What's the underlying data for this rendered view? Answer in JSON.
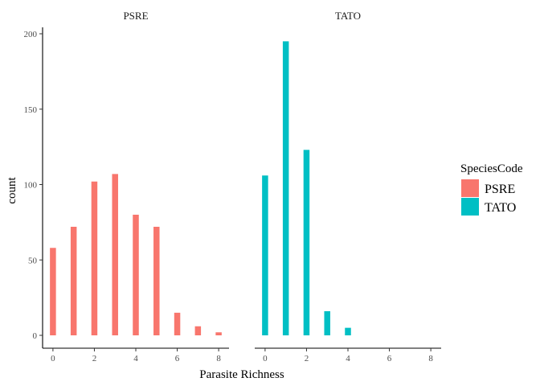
{
  "chart_data": {
    "type": "bar",
    "xlabel": "Parasite Richness",
    "ylabel": "count",
    "xlim": [
      -0.5,
      8.5
    ],
    "ylim": [
      0,
      205
    ],
    "x_ticks": [
      0,
      2,
      4,
      6,
      8
    ],
    "y_ticks": [
      0,
      50,
      100,
      150,
      200
    ],
    "grid": false,
    "legend": {
      "title": "SpeciesCode",
      "position": "right",
      "entries": [
        {
          "label": "PSRE",
          "color": "#F8766D"
        },
        {
          "label": "TATO",
          "color": "#00BFC4"
        }
      ]
    },
    "panels": [
      {
        "label": "PSRE",
        "color": "#F8766D",
        "x": [
          0,
          1,
          2,
          3,
          4,
          5,
          6,
          7,
          8
        ],
        "values": [
          58,
          72,
          102,
          107,
          80,
          72,
          15,
          6,
          2
        ]
      },
      {
        "label": "TATO",
        "color": "#00BFC4",
        "x": [
          0,
          1,
          2,
          3,
          4
        ],
        "values": [
          106,
          195,
          123,
          16,
          5
        ]
      }
    ]
  }
}
